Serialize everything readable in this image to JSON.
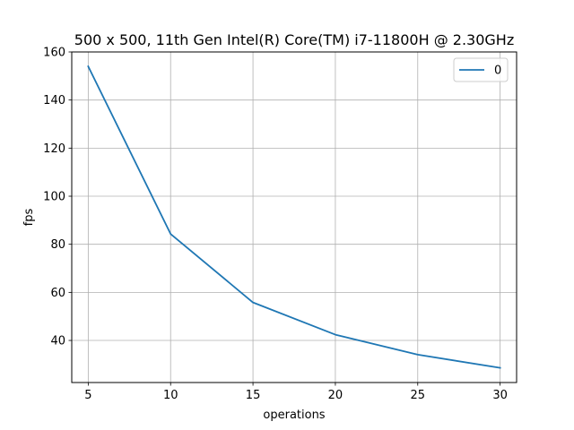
{
  "chart_data": {
    "type": "line",
    "title": "500 x 500, 11th Gen Intel(R) Core(TM) i7-11800H @ 2.30GHz",
    "xlabel": "operations",
    "ylabel": "fps",
    "x": [
      5,
      10,
      15,
      20,
      25,
      30
    ],
    "series": [
      {
        "name": "0",
        "values": [
          154,
          84.3,
          55.8,
          42.4,
          34.1,
          28.6
        ],
        "color": "#1f77b4"
      }
    ],
    "xlim": [
      4,
      31
    ],
    "ylim": [
      22.5,
      160
    ],
    "xticks": [
      5,
      10,
      15,
      20,
      25,
      30
    ],
    "yticks": [
      40,
      60,
      80,
      100,
      120,
      140,
      160
    ],
    "grid": true,
    "legend_position": "top-right"
  }
}
